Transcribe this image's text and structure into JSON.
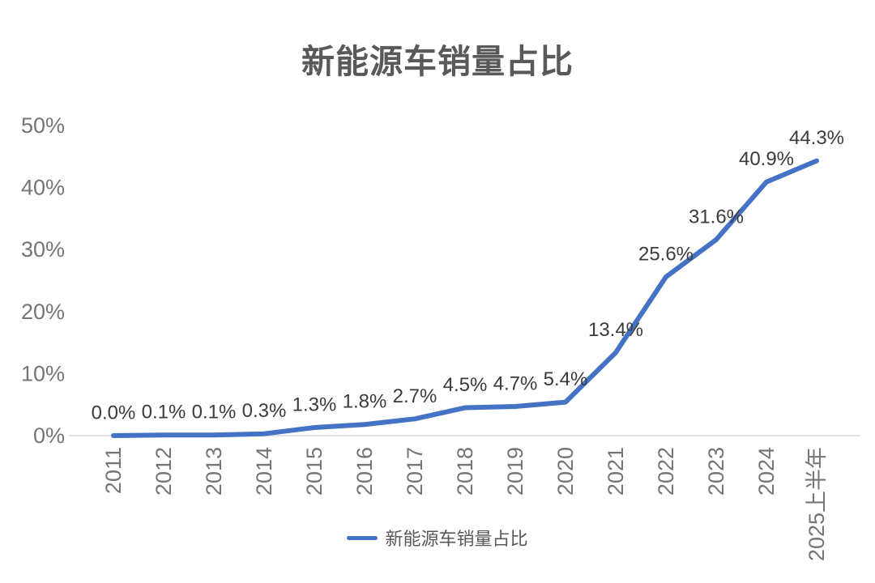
{
  "title": "新能源车销量占比",
  "legend": {
    "label": "新能源车销量占比"
  },
  "chart_data": {
    "type": "line",
    "title": "新能源车销量占比",
    "categories": [
      "2011",
      "2012",
      "2013",
      "2014",
      "2015",
      "2016",
      "2017",
      "2018",
      "2019",
      "2020",
      "2021",
      "2022",
      "2023",
      "2024",
      "2025上半年"
    ],
    "series": [
      {
        "name": "新能源车销量占比",
        "values": [
          0.0,
          0.1,
          0.1,
          0.3,
          1.3,
          1.8,
          2.7,
          4.5,
          4.7,
          5.4,
          13.4,
          25.6,
          31.6,
          40.9,
          44.3
        ],
        "data_labels": [
          "0.0%",
          "0.1%",
          "0.1%",
          "0.3%",
          "1.3%",
          "1.8%",
          "2.7%",
          "4.5%",
          "4.7%",
          "5.4%",
          "13.4%",
          "25.6%",
          "31.6%",
          "40.9%",
          "44.3%"
        ]
      }
    ],
    "xlabel": "",
    "ylabel": "",
    "ylim": [
      0,
      50
    ],
    "ytick_step": 10,
    "ytick_labels": [
      "0%",
      "10%",
      "20%",
      "30%",
      "40%",
      "50%"
    ],
    "grid": false,
    "legend_position": "bottom"
  },
  "colors": {
    "line": "#4472C4",
    "axis_line": "#d9d9d9",
    "axis_text": "#757575",
    "data_label_text": "#3b3b3b",
    "title_text": "#595959"
  }
}
